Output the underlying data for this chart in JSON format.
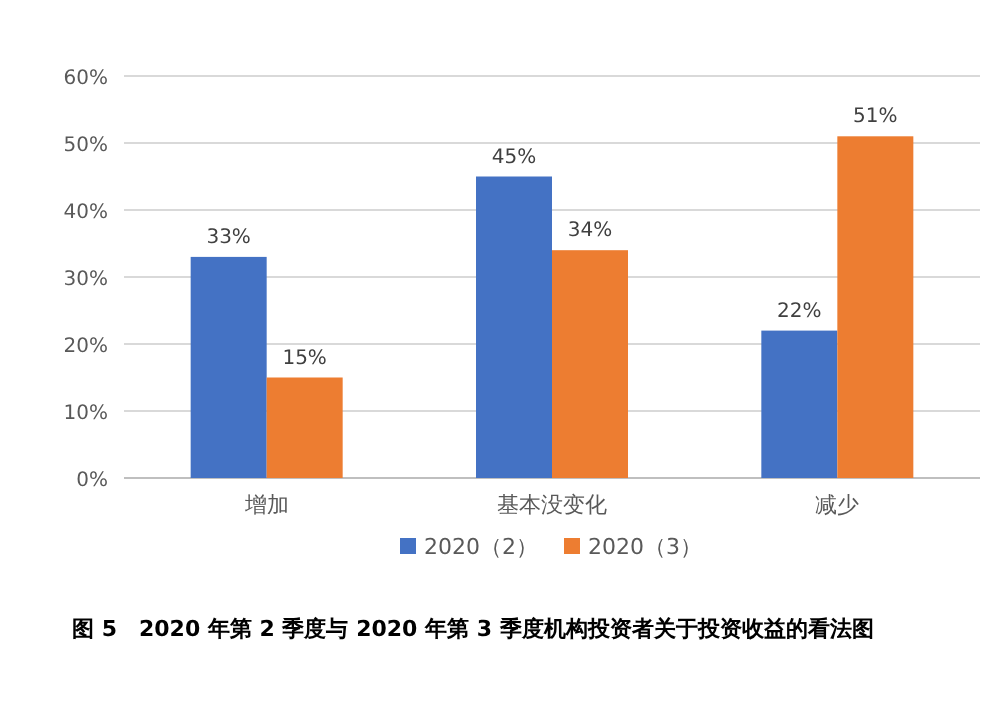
{
  "chart_data": {
    "type": "bar",
    "categories": [
      "增加",
      "基本没变化",
      "减少"
    ],
    "series": [
      {
        "name": "2020（2）",
        "color": "#4472c4",
        "values": [
          33,
          45,
          22
        ],
        "value_labels": [
          "33%",
          "45%",
          "22%"
        ]
      },
      {
        "name": "2020（3）",
        "color": "#ed7d31",
        "values": [
          15,
          34,
          51
        ],
        "value_labels": [
          "15%",
          "34%",
          "51%"
        ]
      }
    ],
    "ylim": [
      0,
      60
    ],
    "yticks": [
      {
        "value": 0,
        "label": "0%"
      },
      {
        "value": 10,
        "label": "10%"
      },
      {
        "value": 20,
        "label": "20%"
      },
      {
        "value": 30,
        "label": "30%"
      },
      {
        "value": 40,
        "label": "40%"
      },
      {
        "value": 50,
        "label": "50%"
      },
      {
        "value": 60,
        "label": "60%"
      }
    ],
    "grid": "y",
    "legend": "bottom",
    "annotations": [
      "图 5　2020 年第 2 季度与 2020 年第 3 季度机构投资者关于投资收益的看法图"
    ]
  }
}
